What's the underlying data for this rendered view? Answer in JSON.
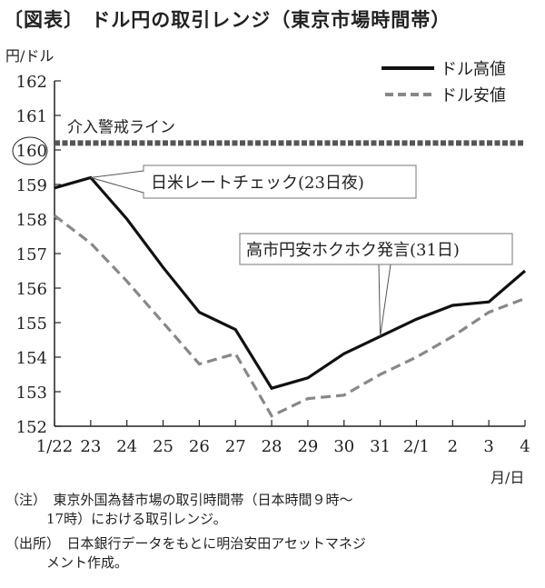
{
  "title": "〔図表〕 ドル円の取引レンジ（東京市場時間帯）",
  "notes": [
    "（注）　東京外国為替市場の取引時間帯（日本時間９時〜",
    "　　　17時）における取引レンジ。",
    "（出所）　日本銀行データをもとに明治安田アセットマネジ",
    "　　　メント作成。"
  ],
  "chart_data": {
    "type": "line",
    "title": "ドル円の取引レンジ（東京市場時間帯）",
    "ylabel": "円/ドル",
    "xlabel": "月/日",
    "ylim": [
      152,
      162
    ],
    "yticks": [
      "152",
      "153",
      "154",
      "155",
      "156",
      "157",
      "158",
      "159",
      "160",
      "161",
      "162"
    ],
    "categories": [
      "1/22",
      "23",
      "24",
      "25",
      "26",
      "27",
      "28",
      "29",
      "30",
      "31",
      "2/1",
      "2",
      "3",
      "4"
    ],
    "series": [
      {
        "name": "ドル高値",
        "style": "solid",
        "color": "#111111",
        "values": [
          158.9,
          159.2,
          158.0,
          156.6,
          155.3,
          154.8,
          153.1,
          153.4,
          154.1,
          154.6,
          155.1,
          155.5,
          155.6,
          156.5
        ]
      },
      {
        "name": "ドル安値",
        "style": "dashed",
        "color": "#888888",
        "values": [
          158.1,
          157.3,
          156.2,
          155.0,
          153.8,
          154.1,
          152.3,
          152.8,
          152.9,
          153.5,
          154.0,
          154.6,
          155.3,
          155.7
        ]
      }
    ],
    "reference_line": {
      "label": "介入警戒ライン",
      "value": 160.2,
      "color": "#555555",
      "circled_tick": "160"
    },
    "annotations": [
      {
        "text": "日米レートチェック(23日夜)",
        "x": "23"
      },
      {
        "text": "高市円安ホクホク発言(31日)",
        "x": "31"
      }
    ],
    "legend_position": "top-right"
  }
}
